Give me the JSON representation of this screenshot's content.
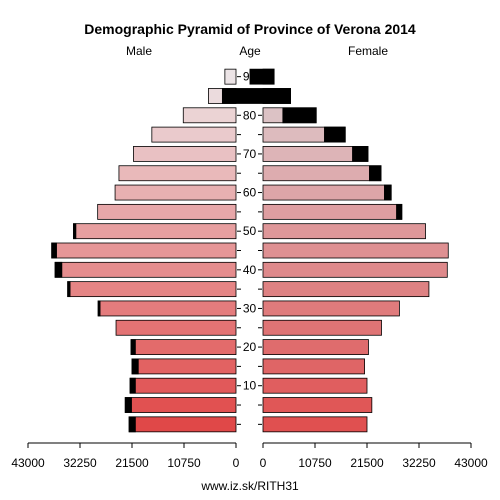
{
  "chart_data": {
    "type": "bar",
    "title": "Demographic Pyramid of Province of Verona 2014",
    "male_label": "Male",
    "female_label": "Female",
    "age_label": "Age",
    "source": "www.iz.sk/RITH31",
    "age_groups": [
      "0-4",
      "5-9",
      "10-14",
      "15-19",
      "20-24",
      "25-29",
      "30-34",
      "35-39",
      "40-44",
      "45-49",
      "50-54",
      "55-59",
      "60-64",
      "65-69",
      "70-74",
      "75-79",
      "80-84",
      "85-89",
      "90+"
    ],
    "age_tick_labels": [
      "10",
      "20",
      "30",
      "40",
      "50",
      "60",
      "70",
      "80",
      "90"
    ],
    "age_tick_groups": [
      2,
      4,
      6,
      8,
      10,
      12,
      14,
      16,
      18
    ],
    "male_x_ticks": [
      "43000",
      "32250",
      "21500",
      "10750",
      "0"
    ],
    "female_x_ticks": [
      "0",
      "10750",
      "21500",
      "32250",
      "43000"
    ],
    "xlim": [
      0,
      43000
    ],
    "series": [
      {
        "name": "Male",
        "values": [
          22100,
          22900,
          21900,
          21500,
          21700,
          24800,
          28500,
          34800,
          37400,
          38100,
          33600,
          28600,
          25000,
          24200,
          21200,
          17400,
          10900,
          5700,
          2300
        ],
        "foreign": [
          1300,
          1300,
          1100,
          1300,
          900,
          0,
          400,
          500,
          1400,
          1000,
          500,
          0,
          0,
          0,
          0,
          0,
          0,
          0,
          0
        ]
      },
      {
        "name": "Female",
        "values": [
          21500,
          22500,
          21500,
          21000,
          21800,
          24500,
          28200,
          34300,
          38100,
          38300,
          33600,
          28700,
          26500,
          24400,
          21700,
          17000,
          11000,
          5700,
          2300
        ],
        "foreign": [
          0,
          0,
          0,
          0,
          0,
          0,
          0,
          0,
          0,
          0,
          0,
          1100,
          1400,
          2400,
          3200,
          4300,
          6900,
          14100,
          5000
        ]
      }
    ],
    "colors": {
      "male_young": "#e04848",
      "male_old": "#ece4e6",
      "female_young": "#e05050",
      "female_old": "#dcd0d4",
      "foreign": "#000000",
      "stroke": "#000000"
    }
  }
}
